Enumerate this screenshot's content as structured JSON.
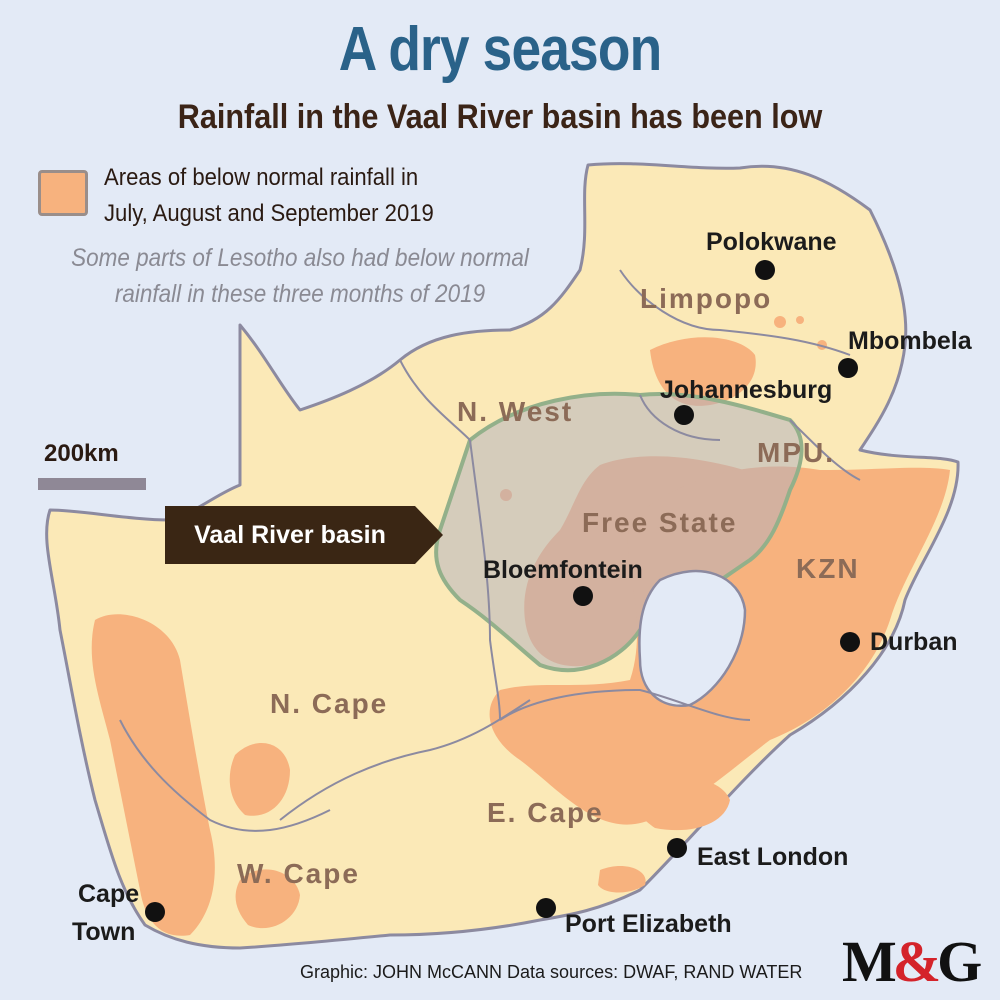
{
  "title": "A dry season",
  "subtitle": "Rainfall in the Vaal River basin has been low",
  "legend": {
    "line1": "Areas of below normal rainfall in",
    "line2": "July, August and September 2019",
    "swatch_color": "#f7b27e"
  },
  "note": {
    "line1": "Some parts of Lesotho also had below normal",
    "line2": "rainfall in these three months of 2019"
  },
  "scale": {
    "label": "200km"
  },
  "basin_label": "Vaal River basin",
  "regions": {
    "limpopo": "Limpopo",
    "north_west": "N. West",
    "mpumalanga": "MPU.",
    "free_state": "Free State",
    "kzn": "KZN",
    "northern_cape": "N. Cape",
    "eastern_cape": "E. Cape",
    "western_cape": "W. Cape"
  },
  "cities": {
    "polokwane": "Polokwane",
    "mbombela": "Mbombela",
    "johannesburg": "Johannesburg",
    "bloemfontein": "Bloemfontein",
    "durban": "Durban",
    "east_london": "East London",
    "port_elizabeth": "Port Elizabeth",
    "cape_town_line1": "Cape",
    "cape_town_line2": "Town"
  },
  "credit": "Graphic: JOHN McCANN  Data sources: DWAF, RAND WATER",
  "logo": {
    "left": "M",
    "amp": "&",
    "right": "G"
  },
  "colors": {
    "background": "#e3eaf6",
    "land": "#fbe9b7",
    "below_normal": "#f7b27e",
    "basin": "#c9c5c9",
    "border": "#8c8aa0",
    "title": "#2a6289",
    "accent_red": "#d4232a"
  }
}
